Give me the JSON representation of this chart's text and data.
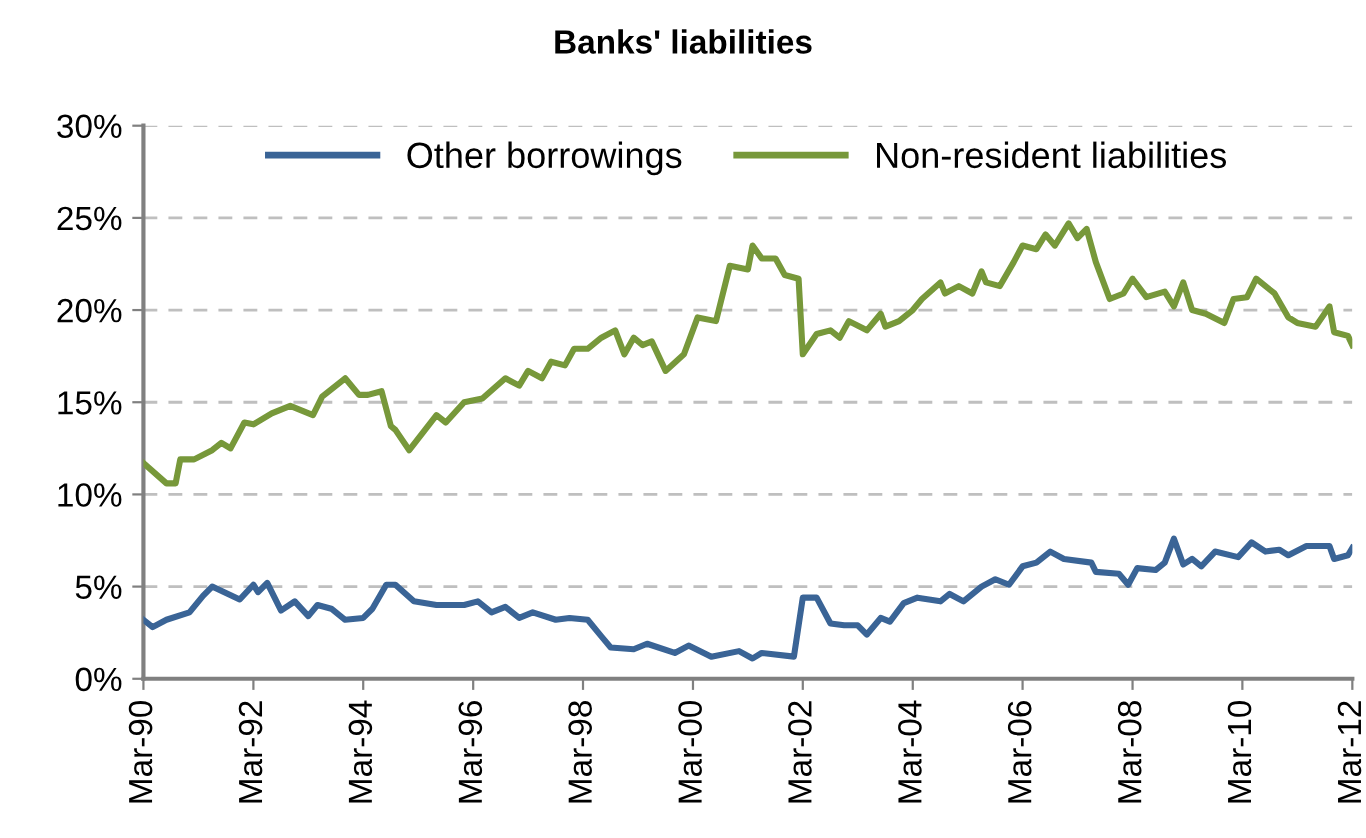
{
  "chart_data": {
    "type": "line",
    "title": "Banks' liabilities",
    "xlim": [
      "1990-03",
      "2012-03"
    ],
    "xticks": [
      {
        "value": "1990-03",
        "label": "Mar-90"
      },
      {
        "value": "1992-03",
        "label": "Mar-92"
      },
      {
        "value": "1994-03",
        "label": "Mar-94"
      },
      {
        "value": "1996-03",
        "label": "Mar-96"
      },
      {
        "value": "1998-03",
        "label": "Mar-98"
      },
      {
        "value": "2000-03",
        "label": "Mar-00"
      },
      {
        "value": "2002-03",
        "label": "Mar-02"
      },
      {
        "value": "2004-03",
        "label": "Mar-04"
      },
      {
        "value": "2006-03",
        "label": "Mar-06"
      },
      {
        "value": "2008-03",
        "label": "Mar-08"
      },
      {
        "value": "2010-03",
        "label": "Mar-10"
      },
      {
        "value": "2012-03",
        "label": "Mar-12"
      }
    ],
    "ylim": [
      0,
      30
    ],
    "yticks": [
      {
        "value": 0,
        "label": "0%"
      },
      {
        "value": 5,
        "label": "5%"
      },
      {
        "value": 10,
        "label": "10%"
      },
      {
        "value": 15,
        "label": "15%"
      },
      {
        "value": 20,
        "label": "20%"
      },
      {
        "value": 25,
        "label": "25%"
      },
      {
        "value": 30,
        "label": "30%"
      }
    ],
    "grid": "y",
    "legend": "top",
    "marker": "none",
    "line_style": "solid",
    "series": [
      {
        "name": "Other borrowings",
        "color": "#3a6496",
        "x": [
          "1990-03",
          "1990-05",
          "1990-08",
          "1991-01",
          "1991-04",
          "1991-06",
          "1991-12",
          "1992-03",
          "1992-04",
          "1992-06",
          "1992-09",
          "1992-12",
          "1993-03",
          "1993-05",
          "1993-08",
          "1993-11",
          "1994-03",
          "1994-05",
          "1994-08",
          "1994-10",
          "1995-02",
          "1995-07",
          "1996-01",
          "1996-04",
          "1996-07",
          "1996-10",
          "1997-01",
          "1997-04",
          "1997-09",
          "1997-12",
          "1998-04",
          "1998-07",
          "1998-09",
          "1999-02",
          "1999-05",
          "1999-11",
          "2000-02",
          "2000-07",
          "2001-01",
          "2001-04",
          "2001-06",
          "2002-01",
          "2002-03",
          "2002-06",
          "2002-09",
          "2002-12",
          "2003-03",
          "2003-05",
          "2003-08",
          "2003-10",
          "2004-01",
          "2004-04",
          "2004-09",
          "2004-11",
          "2005-02",
          "2005-06",
          "2005-09",
          "2005-12",
          "2006-03",
          "2006-06",
          "2006-09",
          "2006-12",
          "2007-06",
          "2007-07",
          "2007-12",
          "2008-02",
          "2008-04",
          "2008-08",
          "2008-10",
          "2008-12",
          "2009-02",
          "2009-04",
          "2009-06",
          "2009-09",
          "2010-02",
          "2010-05",
          "2010-08",
          "2010-11",
          "2011-01",
          "2011-05",
          "2011-10",
          "2011-11",
          "2012-02",
          "2012-03"
        ],
        "values": [
          3.2,
          2.8,
          3.2,
          3.6,
          4.5,
          5.0,
          4.3,
          5.1,
          4.7,
          5.2,
          3.7,
          4.2,
          3.4,
          4.0,
          3.8,
          3.2,
          3.3,
          3.8,
          5.1,
          5.1,
          4.2,
          4.0,
          4.0,
          4.2,
          3.6,
          3.9,
          3.3,
          3.6,
          3.2,
          3.3,
          3.2,
          2.3,
          1.7,
          1.6,
          1.9,
          1.4,
          1.8,
          1.2,
          1.5,
          1.1,
          1.4,
          1.2,
          4.4,
          4.4,
          3.0,
          2.9,
          2.9,
          2.4,
          3.3,
          3.1,
          4.1,
          4.4,
          4.2,
          4.6,
          4.2,
          5.0,
          5.4,
          5.1,
          6.1,
          6.3,
          6.9,
          6.5,
          6.3,
          5.8,
          5.7,
          5.1,
          6.0,
          5.9,
          6.3,
          7.6,
          6.2,
          6.5,
          6.1,
          6.9,
          6.6,
          7.4,
          6.9,
          7.0,
          6.7,
          7.2,
          7.2,
          6.5,
          6.7,
          7.1
        ]
      },
      {
        "name": "Non-resident liabilities",
        "color": "#77983a",
        "x": [
          "1990-03",
          "1990-08",
          "1990-10",
          "1990-11",
          "1991-02",
          "1991-06",
          "1991-08",
          "1991-10",
          "1992-01",
          "1992-03",
          "1992-07",
          "1992-11",
          "1993-01",
          "1993-04",
          "1993-06",
          "1993-11",
          "1994-02",
          "1994-04",
          "1994-07",
          "1994-09",
          "1994-10",
          "1995-01",
          "1995-07",
          "1995-09",
          "1996-01",
          "1996-05",
          "1996-10",
          "1997-01",
          "1997-03",
          "1997-06",
          "1997-08",
          "1997-11",
          "1998-01",
          "1998-04",
          "1998-07",
          "1998-10",
          "1998-12",
          "1999-02",
          "1999-04",
          "1999-06",
          "1999-09",
          "2000-01",
          "2000-04",
          "2000-08",
          "2000-11",
          "2001-03",
          "2001-04",
          "2001-06",
          "2001-09",
          "2001-11",
          "2002-02",
          "2002-03",
          "2002-06",
          "2002-09",
          "2002-11",
          "2003-01",
          "2003-05",
          "2003-08",
          "2003-09",
          "2003-12",
          "2004-03",
          "2004-05",
          "2004-09",
          "2004-10",
          "2005-01",
          "2005-04",
          "2005-06",
          "2005-07",
          "2005-10",
          "2006-01",
          "2006-03",
          "2006-06",
          "2006-08",
          "2006-10",
          "2007-01",
          "2007-03",
          "2007-05",
          "2007-07",
          "2007-10",
          "2008-01",
          "2008-03",
          "2008-06",
          "2008-10",
          "2008-12",
          "2009-02",
          "2009-04",
          "2009-07",
          "2009-11",
          "2010-01",
          "2010-04",
          "2010-06",
          "2010-10",
          "2011-01",
          "2011-03",
          "2011-07",
          "2011-10",
          "2011-11",
          "2012-02",
          "2012-03"
        ],
        "values": [
          11.7,
          10.6,
          10.6,
          11.9,
          11.9,
          12.4,
          12.8,
          12.5,
          13.9,
          13.8,
          14.4,
          14.8,
          14.6,
          14.3,
          15.3,
          16.3,
          15.4,
          15.4,
          15.6,
          13.7,
          13.5,
          12.4,
          14.3,
          13.9,
          15.0,
          15.2,
          16.3,
          15.9,
          16.7,
          16.3,
          17.2,
          17.0,
          17.9,
          17.9,
          18.5,
          18.9,
          17.6,
          18.5,
          18.1,
          18.3,
          16.7,
          17.6,
          19.6,
          19.4,
          22.4,
          22.2,
          23.5,
          22.8,
          22.8,
          21.9,
          21.7,
          17.6,
          18.7,
          18.9,
          18.5,
          19.4,
          18.9,
          19.8,
          19.1,
          19.4,
          20.0,
          20.6,
          21.5,
          20.9,
          21.3,
          20.9,
          22.1,
          21.5,
          21.3,
          22.6,
          23.5,
          23.3,
          24.1,
          23.5,
          24.7,
          23.9,
          24.4,
          22.6,
          20.6,
          20.9,
          21.7,
          20.7,
          21.0,
          20.2,
          21.5,
          20.0,
          19.8,
          19.3,
          20.6,
          20.7,
          21.7,
          20.9,
          19.6,
          19.3,
          19.1,
          20.2,
          18.8,
          18.6,
          18.1
        ]
      }
    ]
  }
}
